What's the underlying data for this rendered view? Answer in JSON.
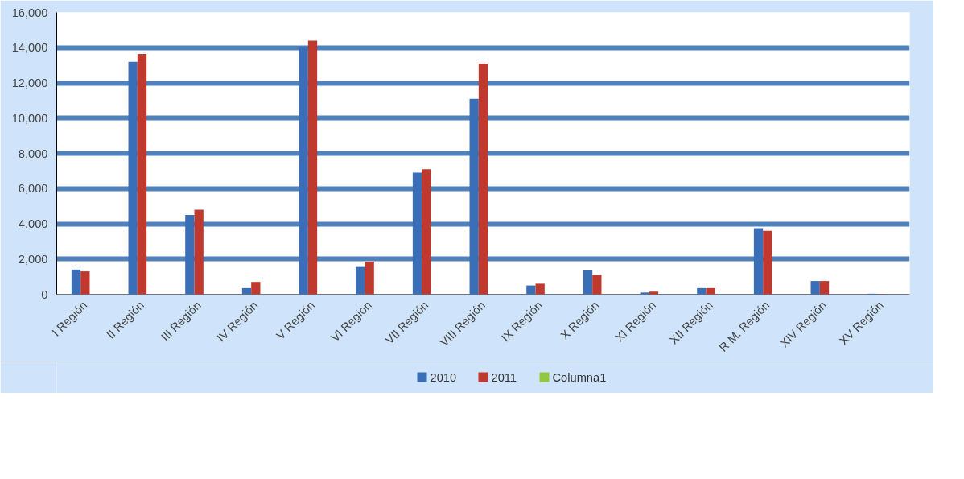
{
  "chart_data": {
    "type": "bar",
    "categories": [
      "I Región",
      "II Región",
      "III Región",
      "IV Región",
      "V Región",
      "VI Región",
      "VII Región",
      "VIII Región",
      "IX Región",
      "X Región",
      "XI Región",
      "XII Región",
      "R.M. Región",
      "XIV Región",
      "XV Región"
    ],
    "series": [
      {
        "name": "2010",
        "color": "#3a6fb8",
        "values": [
          1400,
          13200,
          4500,
          350,
          14000,
          1550,
          6900,
          11100,
          500,
          1350,
          100,
          350,
          3750,
          750,
          30
        ]
      },
      {
        "name": "2011",
        "color": "#c0392f",
        "values": [
          1300,
          13650,
          4800,
          700,
          14400,
          1850,
          7100,
          13100,
          600,
          1100,
          150,
          350,
          3600,
          750,
          20
        ]
      },
      {
        "name": "Columna1",
        "color": "#92c83e",
        "values": [
          null,
          null,
          null,
          null,
          null,
          null,
          null,
          null,
          null,
          null,
          null,
          null,
          null,
          null,
          null
        ]
      }
    ],
    "ylim": [
      0,
      16000
    ],
    "yticks": [
      0,
      {
        "value": 2000,
        "label": "2,000"
      },
      {
        "value": 4000,
        "label": "4,000"
      },
      {
        "value": 6000,
        "label": "6,000"
      },
      {
        "value": 8000,
        "label": "8,000"
      },
      {
        "value": 10000,
        "label": "10,000"
      },
      {
        "value": 12000,
        "label": "12,000"
      },
      {
        "value": 14000,
        "label": "14,000"
      },
      {
        "value": 16000,
        "label": "16,000"
      }
    ],
    "grid": "y",
    "legend": "bottom"
  }
}
